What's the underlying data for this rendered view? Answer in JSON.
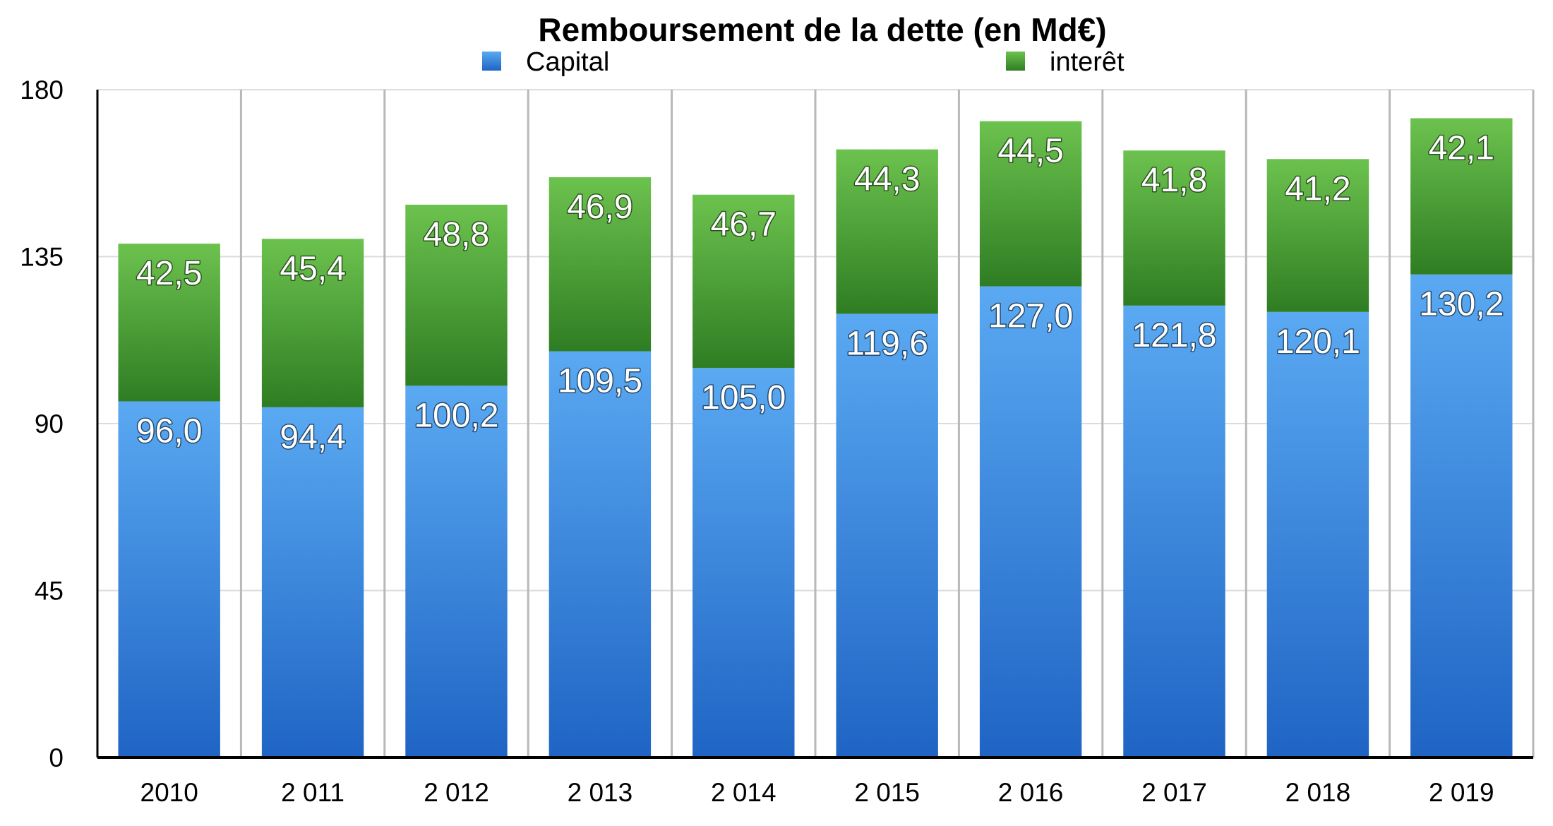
{
  "chart_data": {
    "type": "bar",
    "stacked": true,
    "title": "Remboursement de la dette (en Md€)",
    "categories": [
      "2010",
      "2 011",
      "2 012",
      "2 013",
      "2 014",
      "2 015",
      "2 016",
      "2 017",
      "2 018",
      "2 019"
    ],
    "series": [
      {
        "name": "Capital",
        "color": "#3d8fe6",
        "values": [
          96.0,
          94.4,
          100.2,
          109.5,
          105.0,
          119.6,
          127.0,
          121.8,
          120.1,
          130.2
        ],
        "labels": [
          "96,0",
          "94,4",
          "100,2",
          "109,5",
          "105,0",
          "119,6",
          "127,0",
          "121,8",
          "120,1",
          "130,2"
        ]
      },
      {
        "name": "interêt",
        "color": "#4ea83a",
        "values": [
          42.5,
          45.4,
          48.8,
          46.9,
          46.7,
          44.3,
          44.5,
          41.8,
          41.2,
          42.1
        ],
        "labels": [
          "42,5",
          "45,4",
          "48,8",
          "46,9",
          "46,7",
          "44,3",
          "44,5",
          "41,8",
          "41,2",
          "42,1"
        ]
      }
    ],
    "yticks": [
      "0",
      "45",
      "90",
      "135",
      "180"
    ],
    "ylim": [
      0,
      180
    ],
    "grid": true,
    "legend": "top"
  }
}
